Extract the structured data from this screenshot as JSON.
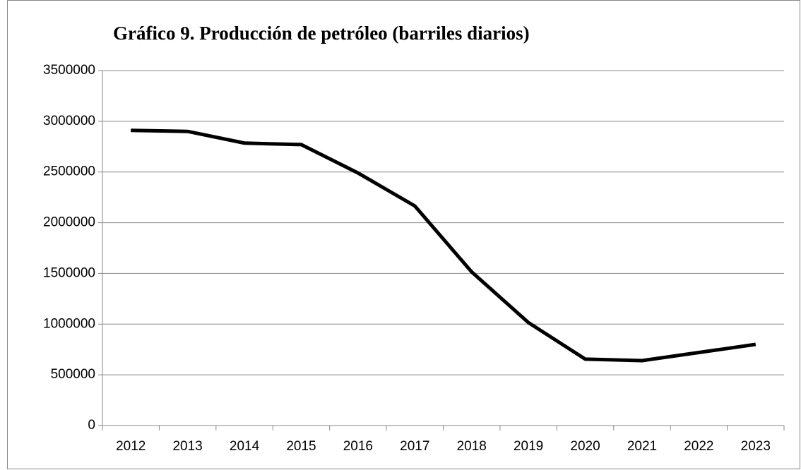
{
  "chart_data": {
    "type": "line",
    "title": "Gráfico 9. Producción  de petróleo  (barriles diarios)",
    "categories": [
      "2012",
      "2013",
      "2014",
      "2015",
      "2016",
      "2017",
      "2018",
      "2019",
      "2020",
      "2021",
      "2022",
      "2023"
    ],
    "values": [
      2910000,
      2900000,
      2785000,
      2770000,
      2490000,
      2165000,
      1515000,
      1015000,
      655000,
      640000,
      720000,
      800000
    ],
    "color": "#000000",
    "ylim": [
      0,
      3500000
    ],
    "yticks": [
      0,
      500000,
      1000000,
      1500000,
      2000000,
      2500000,
      3000000,
      3500000
    ],
    "grid": true
  }
}
